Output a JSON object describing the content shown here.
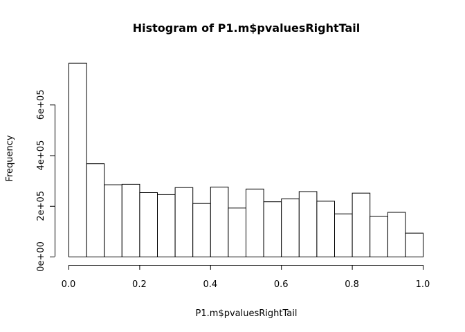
{
  "chart_data": {
    "type": "bar",
    "title": "Histogram of P1.m$pvaluesRightTail",
    "xlabel": "P1.m$pvaluesRightTail",
    "ylabel": "Frequency",
    "bin_edges": [
      0.0,
      0.05,
      0.1,
      0.15,
      0.2,
      0.25,
      0.3,
      0.35,
      0.4,
      0.45,
      0.5,
      0.55,
      0.6,
      0.65,
      0.7,
      0.75,
      0.8,
      0.85,
      0.9,
      0.95,
      1.0
    ],
    "values": [
      765000,
      368000,
      285000,
      287000,
      254000,
      246000,
      274000,
      211000,
      276000,
      193000,
      268000,
      218000,
      229000,
      258000,
      220000,
      170000,
      252000,
      161000,
      176000,
      94000
    ],
    "xlim": [
      0,
      1
    ],
    "ylim": [
      0,
      770000
    ],
    "x_ticks": [
      0.0,
      0.2,
      0.4,
      0.6,
      0.8,
      1.0
    ],
    "x_tick_labels": [
      "0.0",
      "0.2",
      "0.4",
      "0.6",
      "0.8",
      "1.0"
    ],
    "y_ticks": [
      0,
      200000,
      400000,
      600000
    ],
    "y_tick_labels": [
      "0e+00",
      "2e+05",
      "4e+05",
      "6e+05"
    ],
    "grid": false,
    "bar_fill": "#ffffff",
    "bar_stroke": "#000000"
  }
}
